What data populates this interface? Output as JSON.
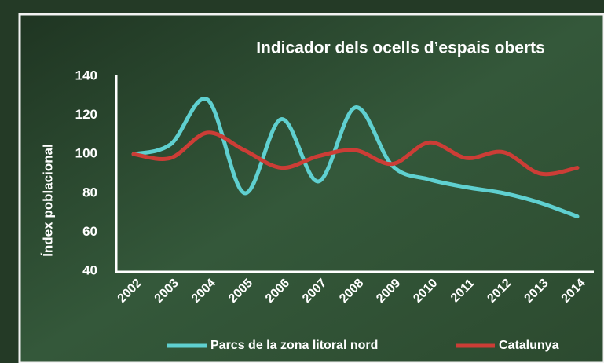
{
  "chart_data": {
    "type": "line",
    "title": "Indicador dels ocells d’espais oberts",
    "y_label": "Índex poblacional",
    "categories": [
      "2002",
      "2003",
      "2004",
      "2005",
      "2006",
      "2007",
      "2008",
      "2009",
      "2010",
      "2011",
      "2012",
      "2013",
      "2014"
    ],
    "series": [
      {
        "name": "Parcs de la zona litoral nord",
        "color": "#5fd0d0",
        "values": [
          100,
          105,
          128,
          80,
          118,
          86,
          124,
          94,
          87,
          83,
          80,
          75,
          68
        ]
      },
      {
        "name": "Catalunya",
        "color": "#cc3d36",
        "values": [
          100,
          98,
          111,
          102,
          93,
          99,
          102,
          95,
          106,
          98,
          101,
          90,
          93
        ]
      }
    ],
    "ylim": [
      40,
      140
    ],
    "yticks": [
      40,
      60,
      80,
      100,
      120,
      140
    ],
    "smooth": true,
    "legend": "bottom"
  }
}
